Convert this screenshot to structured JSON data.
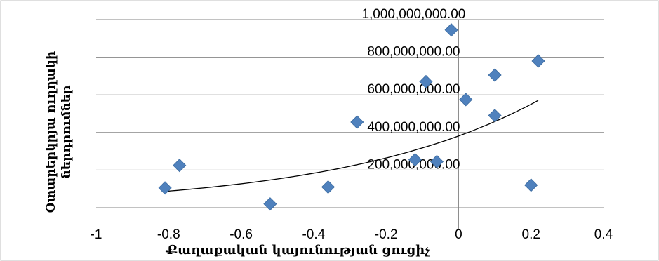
{
  "chart_data": {
    "type": "scatter",
    "title": "",
    "xlabel": "Քաղաքական կայունության ցուցիչ",
    "ylabel_lines": [
      "Օտարերկրյա ուղղակի",
      "ներդրումներ"
    ],
    "xlim": [
      -1,
      0.4
    ],
    "ylim": [
      0,
      1000000000
    ],
    "x_ticks": [
      -1,
      -0.8,
      -0.6,
      -0.4,
      -0.2,
      0,
      0.2,
      0.4
    ],
    "x_tick_labels": [
      "-1",
      "-0.8",
      "-0.6",
      "-0.4",
      "-0.2",
      "0",
      "0.2",
      "0.4"
    ],
    "y_ticks": [
      200000000,
      400000000,
      600000000,
      800000000,
      1000000000
    ],
    "y_tick_labels": [
      "200,000,000.00",
      "400,000,000.00",
      "600,000,000.00",
      "800,000,000.00",
      "1,000,000,000.00"
    ],
    "grid": true,
    "marker": "diamond",
    "marker_color": "#4F81BD",
    "trendline": {
      "type": "exponential",
      "x_range": [
        -0.81,
        0.22
      ],
      "color": "#000000"
    },
    "points": [
      {
        "x": -0.81,
        "y": 105000000
      },
      {
        "x": -0.77,
        "y": 225000000
      },
      {
        "x": -0.52,
        "y": 20000000
      },
      {
        "x": -0.36,
        "y": 110000000
      },
      {
        "x": -0.28,
        "y": 455000000
      },
      {
        "x": -0.12,
        "y": 255000000
      },
      {
        "x": -0.09,
        "y": 670000000
      },
      {
        "x": -0.06,
        "y": 245000000
      },
      {
        "x": -0.02,
        "y": 945000000
      },
      {
        "x": 0.02,
        "y": 575000000
      },
      {
        "x": 0.1,
        "y": 490000000
      },
      {
        "x": 0.1,
        "y": 705000000
      },
      {
        "x": 0.2,
        "y": 120000000
      },
      {
        "x": 0.22,
        "y": 780000000
      }
    ]
  }
}
